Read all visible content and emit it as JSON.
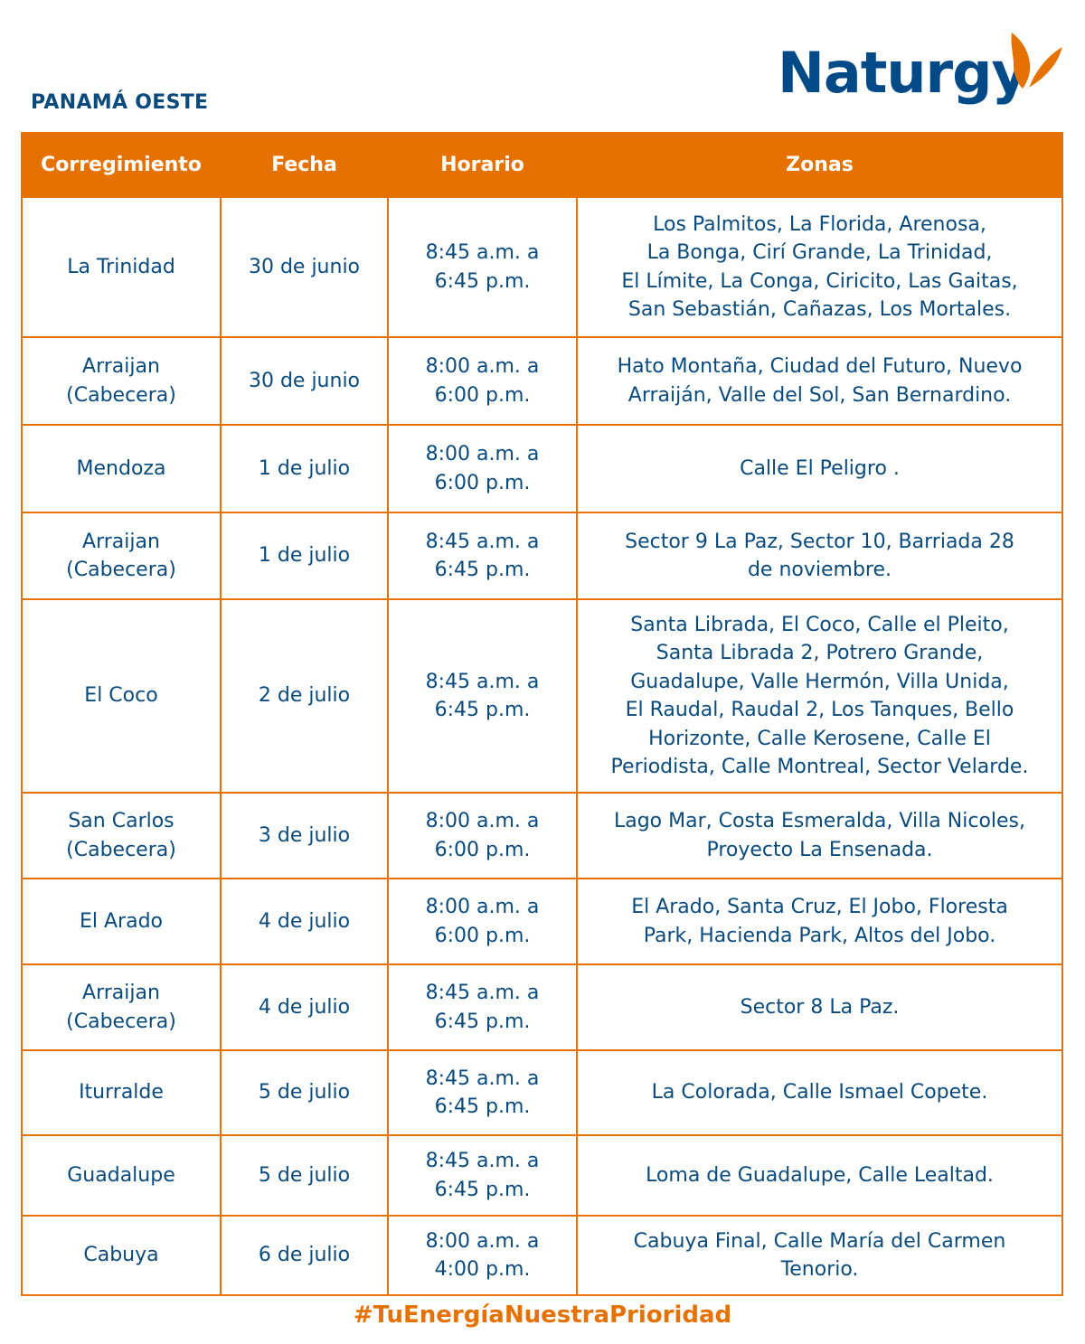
{
  "region": "PANAMÁ OESTE",
  "logo": {
    "text": "Naturgy",
    "colors": {
      "text": "#004b87",
      "butterfly": "#e57200"
    }
  },
  "colors": {
    "accent": "#e57200",
    "text": "#0a4a7c"
  },
  "table": {
    "headers": [
      "Corregimiento",
      "Fecha",
      "Horario",
      "Zonas"
    ],
    "rows": [
      {
        "corregimiento": [
          "La Trinidad"
        ],
        "fecha": "30 de junio",
        "horario": [
          "8:45 a.m. a",
          "6:45 p.m."
        ],
        "zonas": [
          "Los Palmitos, La Florida, Arenosa,",
          "La Bonga, Cirí Grande, La Trinidad,",
          "El Límite, La Conga, Ciricito, Las Gaitas,",
          "San Sebastián, Cañazas, Los Mortales."
        ]
      },
      {
        "corregimiento": [
          "Arraijan",
          "(Cabecera)"
        ],
        "fecha": "30 de junio",
        "horario": [
          "8:00 a.m. a",
          "6:00 p.m."
        ],
        "zonas": [
          "Hato Montaña, Ciudad del Futuro, Nuevo",
          "Arraiján, Valle del Sol, San Bernardino."
        ]
      },
      {
        "corregimiento": [
          "Mendoza"
        ],
        "fecha": "1 de julio",
        "horario": [
          "8:00 a.m. a",
          "6:00 p.m."
        ],
        "zonas": [
          "Calle El Peligro ."
        ]
      },
      {
        "corregimiento": [
          "Arraijan",
          "(Cabecera)"
        ],
        "fecha": "1 de julio",
        "horario": [
          "8:45 a.m. a",
          "6:45 p.m."
        ],
        "zonas": [
          "Sector 9 La Paz, Sector 10, Barriada 28",
          "de noviembre."
        ]
      },
      {
        "corregimiento": [
          "El Coco"
        ],
        "fecha": "2 de julio",
        "horario": [
          "8:45 a.m. a",
          "6:45 p.m."
        ],
        "zonas": [
          "Santa Librada, El Coco, Calle el Pleito,",
          "Santa Librada 2, Potrero Grande,",
          "Guadalupe, Valle Hermón, Villa Unida,",
          "El Raudal, Raudal 2, Los Tanques, Bello",
          "Horizonte, Calle Kerosene, Calle El",
          "Periodista, Calle Montreal, Sector Velarde."
        ]
      },
      {
        "corregimiento": [
          "San Carlos",
          "(Cabecera)"
        ],
        "fecha": "3 de julio",
        "horario": [
          "8:00 a.m. a",
          "6:00 p.m."
        ],
        "zonas": [
          "Lago Mar, Costa Esmeralda, Villa Nicoles,",
          "Proyecto La Ensenada."
        ]
      },
      {
        "corregimiento": [
          "El Arado"
        ],
        "fecha": "4 de julio",
        "horario": [
          "8:00 a.m. a",
          "6:00 p.m."
        ],
        "zonas": [
          "El Arado, Santa Cruz, El Jobo, Floresta",
          "Park, Hacienda Park, Altos del Jobo."
        ]
      },
      {
        "corregimiento": [
          "Arraijan",
          "(Cabecera)"
        ],
        "fecha": "4 de julio",
        "horario": [
          "8:45 a.m. a",
          "6:45 p.m."
        ],
        "zonas": [
          "Sector 8 La Paz."
        ]
      },
      {
        "corregimiento": [
          "Iturralde"
        ],
        "fecha": "5 de julio",
        "horario": [
          "8:45 a.m. a",
          "6:45 p.m."
        ],
        "zonas": [
          "La Colorada, Calle Ismael Copete."
        ]
      },
      {
        "corregimiento": [
          "Guadalupe"
        ],
        "fecha": "5 de julio",
        "horario": [
          "8:45 a.m. a",
          "6:45 p.m."
        ],
        "zonas": [
          "Loma de Guadalupe, Calle Lealtad."
        ]
      },
      {
        "corregimiento": [
          "Cabuya"
        ],
        "fecha": "6 de julio",
        "horario": [
          "8:00 a.m. a",
          "4:00 p.m."
        ],
        "zonas": [
          "Cabuya Final, Calle María del Carmen",
          "Tenorio."
        ]
      }
    ]
  },
  "hashtag": "#TuEnergíaNuestraPrioridad"
}
